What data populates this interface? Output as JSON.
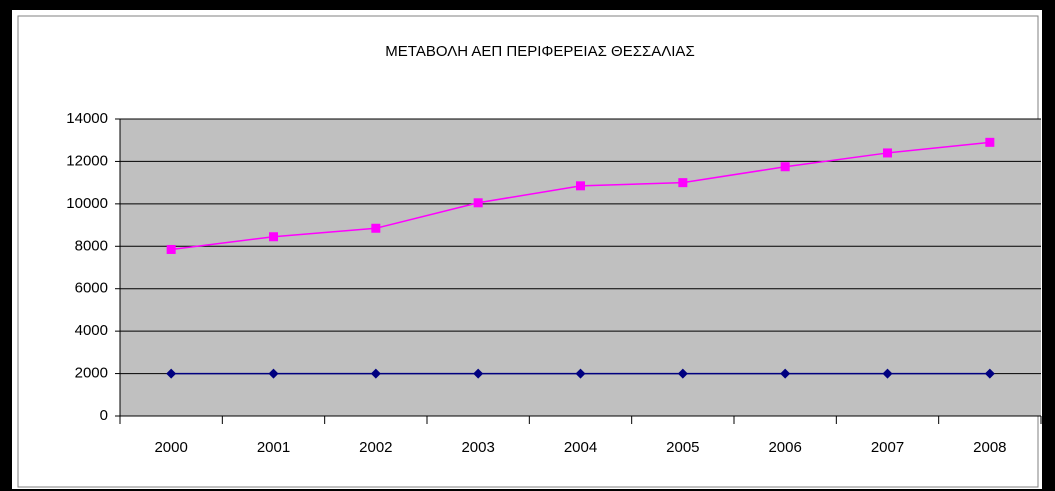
{
  "chart_data": {
    "type": "line",
    "title": "ΜΕΤΑΒΟΛΗ ΑΕΠ ΠΕΡΙΦΕΡΕΙΑΣ ΘΕΣΣΑΛΙΑΣ",
    "categories": [
      "2000",
      "2001",
      "2002",
      "2003",
      "2004",
      "2005",
      "2006",
      "2007",
      "2008"
    ],
    "series": [
      {
        "color": "#000080",
        "marker": "diamond",
        "values": [
          2000,
          2000,
          2000,
          2000,
          2000,
          2000,
          2000,
          2000,
          2000
        ]
      },
      {
        "color": "#ff00ff",
        "marker": "square",
        "values": [
          7850,
          8450,
          8850,
          10050,
          10850,
          11000,
          11750,
          12400,
          12900
        ]
      }
    ],
    "ylim": [
      0,
      14000
    ],
    "yticks": [
      0,
      2000,
      4000,
      6000,
      8000,
      10000,
      12000,
      14000
    ],
    "grid": true,
    "plot_background": "#c0c0c0"
  }
}
